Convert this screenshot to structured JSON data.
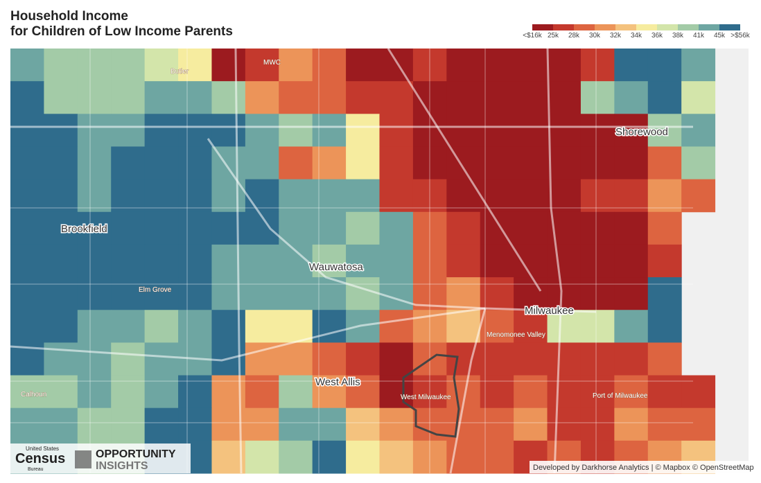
{
  "header": {
    "title_line1": "Household Income",
    "title_line2": "for Children of Low Income Parents"
  },
  "legend": {
    "labels": [
      "<$16k",
      "25k",
      "28k",
      "30k",
      "32k",
      "34k",
      "36k",
      "38k",
      "41k",
      "45k",
      ">$56k"
    ],
    "colors": [
      "#9c1b1f",
      "#c4392d",
      "#dd6440",
      "#ec9459",
      "#f4c27e",
      "#f6ec9f",
      "#d3e5aa",
      "#a3cba7",
      "#6ea6a2",
      "#2f6c8c"
    ]
  },
  "places": [
    {
      "label": "Butler"
    },
    {
      "label": "MWC"
    },
    {
      "label": "Shorewood"
    },
    {
      "label": "Brookfield"
    },
    {
      "label": "Wauwatosa"
    },
    {
      "label": "Elm Grove"
    },
    {
      "label": "Milwaukee"
    },
    {
      "label": "Menomonee Valley"
    },
    {
      "label": "West Allis"
    },
    {
      "label": "West Milwaukee"
    },
    {
      "label": "Calhoun"
    },
    {
      "label": "Port of Milwaukee"
    }
  ],
  "logos": {
    "census_top": "United States",
    "census_main": "Census",
    "census_bottom": "Bureau",
    "oi_line1": "OPPORTUNITY",
    "oi_line2": "INSIGHTS"
  },
  "attribution": "Developed by Darkhorse Analytics | © Mapbox © OpenStreetMap"
}
